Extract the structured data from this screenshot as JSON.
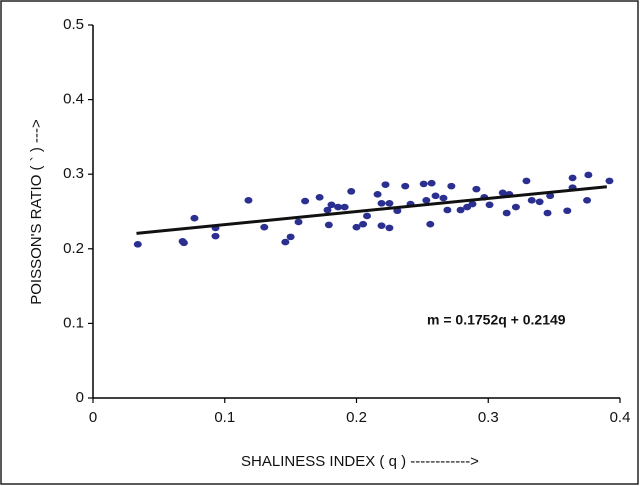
{
  "chart_data": {
    "type": "scatter",
    "xlabel": "SHALINESS INDEX ( q ) ------------>",
    "ylabel": "POISSON'S RATIO ( ` ) --->",
    "annotation": "m = 0.1752q + 0.2149",
    "xlim": [
      0,
      0.4
    ],
    "ylim": [
      0,
      0.5
    ],
    "xticks": [
      0,
      0.1,
      0.2,
      0.3,
      0.4
    ],
    "yticks": [
      0,
      0.1,
      0.2,
      0.3,
      0.4,
      0.5
    ],
    "color": "#2b2f8f",
    "grid": false,
    "trendline": {
      "slope": 0.1752,
      "intercept": 0.2149,
      "x": [
        0.033,
        0.39
      ],
      "color": "#111111"
    },
    "x": [
      0.034,
      0.068,
      0.069,
      0.077,
      0.093,
      0.093,
      0.118,
      0.13,
      0.146,
      0.15,
      0.156,
      0.161,
      0.172,
      0.178,
      0.181,
      0.186,
      0.191,
      0.179,
      0.196,
      0.2,
      0.205,
      0.208,
      0.216,
      0.219,
      0.222,
      0.225,
      0.219,
      0.225,
      0.231,
      0.237,
      0.241,
      0.251,
      0.257,
      0.253,
      0.256,
      0.26,
      0.266,
      0.269,
      0.272,
      0.279,
      0.284,
      0.288,
      0.291,
      0.297,
      0.301,
      0.311,
      0.316,
      0.314,
      0.321,
      0.329,
      0.333,
      0.339,
      0.345,
      0.347,
      0.36,
      0.364,
      0.364,
      0.375,
      0.376,
      0.392
    ],
    "values": [
      0.206,
      0.21,
      0.208,
      0.241,
      0.228,
      0.217,
      0.265,
      0.229,
      0.209,
      0.216,
      0.236,
      0.264,
      0.269,
      0.252,
      0.259,
      0.256,
      0.256,
      0.232,
      0.277,
      0.229,
      0.233,
      0.244,
      0.273,
      0.261,
      0.286,
      0.261,
      0.231,
      0.228,
      0.251,
      0.284,
      0.26,
      0.287,
      0.288,
      0.265,
      0.233,
      0.271,
      0.268,
      0.252,
      0.284,
      0.252,
      0.256,
      0.26,
      0.28,
      0.269,
      0.259,
      0.275,
      0.273,
      0.248,
      0.256,
      0.291,
      0.265,
      0.263,
      0.248,
      0.271,
      0.251,
      0.295,
      0.282,
      0.265,
      0.299,
      0.291
    ]
  }
}
